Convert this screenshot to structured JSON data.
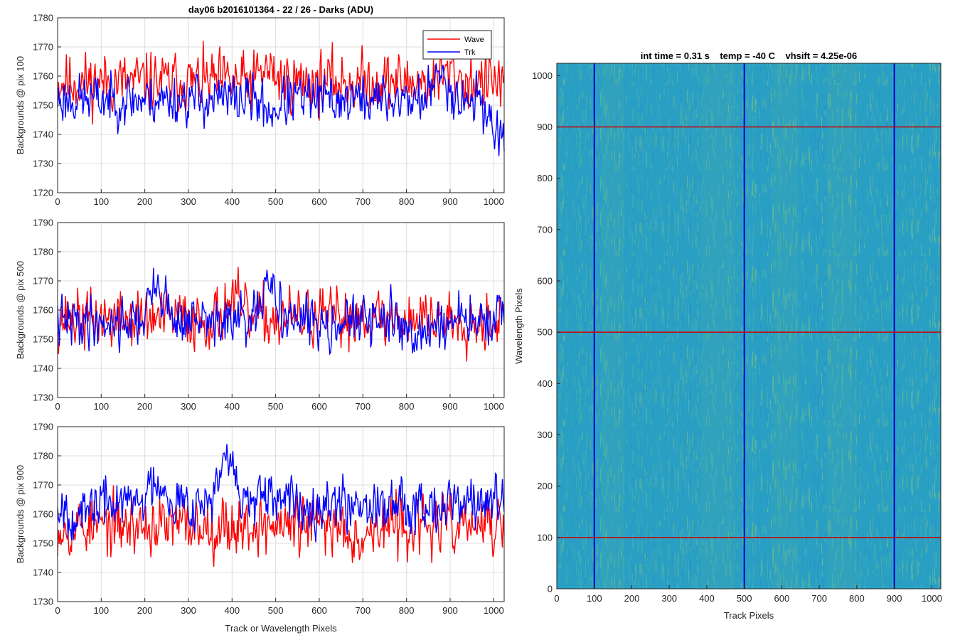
{
  "figure": {
    "title": "day06 b2016101364 - 22 / 26 - Darks (ADU)"
  },
  "chart_data": [
    {
      "type": "line",
      "panel": "top-left",
      "title": "day06 b2016101364 - 22 / 26 - Darks (ADU)",
      "xlabel": "",
      "ylabel": "Backgrounds @ pix 100",
      "xlim": [
        0,
        1024
      ],
      "ylim": [
        1720,
        1780
      ],
      "xticks": [
        0,
        100,
        200,
        300,
        400,
        500,
        600,
        700,
        800,
        900,
        1000
      ],
      "yticks": [
        1720,
        1730,
        1740,
        1750,
        1760,
        1770,
        1780
      ],
      "grid": true,
      "legend": {
        "placement": "top-right",
        "entries": [
          "Wave",
          "Trk"
        ]
      },
      "series": [
        {
          "name": "Wave",
          "color": "#ff0000",
          "mean": 1758,
          "noise": 7,
          "seed": 11,
          "features": [
            {
              "x": 480,
              "delta": 4
            },
            {
              "x": 900,
              "delta": 3
            }
          ]
        },
        {
          "name": "Trk",
          "color": "#0000ff",
          "mean": 1752,
          "noise": 6,
          "seed": 23,
          "features": [
            {
              "x": 1010,
              "delta": -12
            },
            {
              "x": 880,
              "delta": 8
            },
            {
              "x": 490,
              "delta": -4
            }
          ]
        }
      ]
    },
    {
      "type": "line",
      "panel": "middle-left",
      "title": "",
      "xlabel": "",
      "ylabel": "Backgrounds @ pix 500",
      "xlim": [
        0,
        1024
      ],
      "ylim": [
        1730,
        1790
      ],
      "xticks": [
        0,
        100,
        200,
        300,
        400,
        500,
        600,
        700,
        800,
        900,
        1000
      ],
      "yticks": [
        1730,
        1740,
        1750,
        1760,
        1770,
        1780,
        1790
      ],
      "grid": true,
      "series": [
        {
          "name": "Wave",
          "color": "#ff0000",
          "mean": 1757,
          "noise": 7,
          "seed": 37,
          "features": [
            {
              "x": 400,
              "delta": 6
            },
            {
              "x": 700,
              "delta": 2
            }
          ]
        },
        {
          "name": "Trk",
          "color": "#0000ff",
          "mean": 1756,
          "noise": 6,
          "seed": 41,
          "features": [
            {
              "x": 230,
              "delta": 12
            },
            {
              "x": 490,
              "delta": 12
            },
            {
              "x": 830,
              "delta": -6
            }
          ]
        }
      ]
    },
    {
      "type": "line",
      "panel": "bottom-left",
      "title": "",
      "xlabel": "Track or Wavelength Pixels",
      "ylabel": "Backgrounds @ pix 900",
      "xlim": [
        0,
        1024
      ],
      "ylim": [
        1730,
        1790
      ],
      "xticks": [
        0,
        100,
        200,
        300,
        400,
        500,
        600,
        700,
        800,
        900,
        1000
      ],
      "yticks": [
        1730,
        1740,
        1750,
        1760,
        1770,
        1780,
        1790
      ],
      "grid": true,
      "series": [
        {
          "name": "Wave",
          "color": "#ff0000",
          "mean": 1756,
          "noise": 7,
          "seed": 53,
          "features": [
            {
              "x": 700,
              "delta": -4
            }
          ]
        },
        {
          "name": "Trk",
          "color": "#0000ff",
          "mean": 1764,
          "noise": 6,
          "seed": 67,
          "features": [
            {
              "x": 390,
              "delta": 14
            },
            {
              "x": 230,
              "delta": 8
            },
            {
              "x": 50,
              "delta": -6
            }
          ]
        }
      ]
    },
    {
      "type": "heatmap",
      "panel": "right",
      "title": "int time = 0.31 s    temp = -40 C    vhsift = 4.25e-06",
      "xlabel": "Track Pixels",
      "ylabel": "Wavelength Pixels",
      "xlim": [
        0,
        1024
      ],
      "ylim": [
        0,
        1024
      ],
      "xticks": [
        0,
        100,
        200,
        300,
        400,
        500,
        600,
        700,
        800,
        900,
        1000
      ],
      "yticks": [
        0,
        100,
        200,
        300,
        400,
        500,
        600,
        700,
        800,
        900,
        1000
      ],
      "colormap": "parula",
      "base_color": "#2a9fc4",
      "highlight_colors": [
        "#1a8fcf",
        "#3db0b5",
        "#5fc19a",
        "#8cc66e"
      ],
      "vertical_markers": {
        "color": "#0000cc",
        "x": [
          100,
          500,
          900
        ]
      },
      "horizontal_markers": {
        "color": "#cc0000",
        "y": [
          100,
          500,
          900
        ]
      }
    }
  ]
}
